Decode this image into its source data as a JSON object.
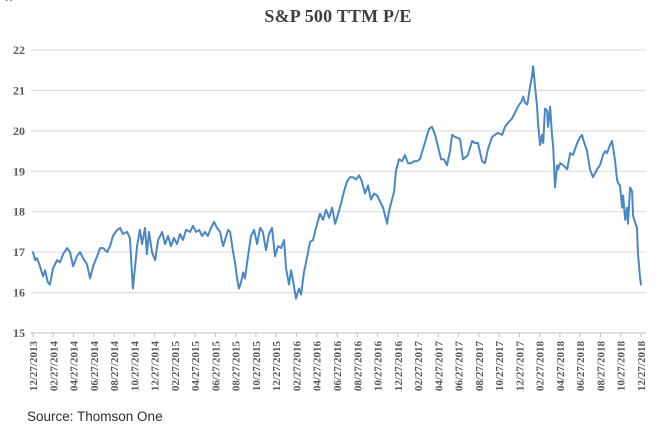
{
  "header": {
    "title": "S&P 500 TTM P/E",
    "artifact_glyph": "”"
  },
  "footer": {
    "source": "Source: Thomson One"
  },
  "chart_data": {
    "type": "line",
    "title": "S&P 500 TTM P/E",
    "x_unit": "weeks since 2013-12-27 (weekly data)",
    "xrange": [
      0,
      261
    ],
    "ylim": [
      15,
      22
    ],
    "yticks": [
      15,
      16,
      17,
      18,
      19,
      20,
      21,
      22
    ],
    "xtick_labels": [
      "12/27/2013",
      "02/27/2014",
      "04/27/2014",
      "06/27/2014",
      "08/27/2014",
      "10/27/2014",
      "12/27/2014",
      "02/27/2015",
      "04/27/2015",
      "06/27/2015",
      "08/27/2015",
      "10/27/2015",
      "12/27/2015",
      "02/27/2016",
      "04/27/2016",
      "06/27/2016",
      "08/27/2016",
      "10/27/2016",
      "12/27/2016",
      "02/27/2017",
      "04/27/2017",
      "06/27/2017",
      "08/27/2017",
      "10/27/2017",
      "12/27/2017",
      "02/27/2018",
      "04/27/2018",
      "06/27/2018",
      "08/27/2018",
      "10/27/2018",
      "12/27/2018"
    ],
    "grid": "horizontal",
    "legend": "none",
    "colors": {
      "line": "#4B86C5",
      "gridline": "#D9D9D9",
      "axis": "#BFBFBF",
      "tick_label": "#595959",
      "title": "#3F3F3F"
    },
    "series": [
      {
        "name": "S&P 500 TTM P/E",
        "color": "#4B86C5",
        "points": [
          [
            0,
            17.0
          ],
          [
            0.9,
            16.8
          ],
          [
            1.7,
            16.85
          ],
          [
            3,
            16.65
          ],
          [
            4.3,
            16.4
          ],
          [
            5.2,
            16.55
          ],
          [
            6.4,
            16.25
          ],
          [
            7.3,
            16.2
          ],
          [
            8.6,
            16.6
          ],
          [
            10.3,
            16.8
          ],
          [
            11.6,
            16.75
          ],
          [
            12.9,
            16.95
          ],
          [
            14.6,
            17.1
          ],
          [
            15.9,
            17.0
          ],
          [
            17.2,
            16.65
          ],
          [
            18.9,
            16.9
          ],
          [
            20.2,
            17.0
          ],
          [
            21.5,
            16.85
          ],
          [
            23.2,
            16.7
          ],
          [
            24.5,
            16.35
          ],
          [
            25.8,
            16.65
          ],
          [
            27.5,
            16.9
          ],
          [
            28.8,
            17.1
          ],
          [
            30.1,
            17.1
          ],
          [
            31.8,
            17.0
          ],
          [
            33.1,
            17.15
          ],
          [
            34.3,
            17.4
          ],
          [
            36.1,
            17.55
          ],
          [
            37.4,
            17.6
          ],
          [
            38.6,
            17.45
          ],
          [
            40.4,
            17.5
          ],
          [
            41.6,
            17.35
          ],
          [
            42.5,
            16.45
          ],
          [
            42.9,
            16.1
          ],
          [
            44.7,
            17.15
          ],
          [
            45.9,
            17.55
          ],
          [
            46.8,
            17.2
          ],
          [
            48.1,
            17.6
          ],
          [
            48.9,
            16.95
          ],
          [
            49.8,
            17.5
          ],
          [
            51.1,
            17.0
          ],
          [
            52.4,
            16.8
          ],
          [
            53.7,
            17.3
          ],
          [
            55.4,
            17.5
          ],
          [
            56.7,
            17.2
          ],
          [
            58,
            17.4
          ],
          [
            59.2,
            17.15
          ],
          [
            60.5,
            17.35
          ],
          [
            61.8,
            17.2
          ],
          [
            63.1,
            17.45
          ],
          [
            64.4,
            17.3
          ],
          [
            65.7,
            17.55
          ],
          [
            67.4,
            17.5
          ],
          [
            68.7,
            17.65
          ],
          [
            70,
            17.5
          ],
          [
            71.3,
            17.55
          ],
          [
            72.6,
            17.4
          ],
          [
            73.8,
            17.5
          ],
          [
            75.1,
            17.4
          ],
          [
            76.4,
            17.6
          ],
          [
            77.7,
            17.75
          ],
          [
            79,
            17.6
          ],
          [
            80.3,
            17.5
          ],
          [
            81.6,
            17.15
          ],
          [
            82.4,
            17.3
          ],
          [
            83.7,
            17.55
          ],
          [
            84.6,
            17.5
          ],
          [
            85.9,
            17.0
          ],
          [
            86.7,
            16.75
          ],
          [
            87.6,
            16.35
          ],
          [
            88.4,
            16.1
          ],
          [
            89.3,
            16.25
          ],
          [
            90.2,
            16.5
          ],
          [
            91,
            16.35
          ],
          [
            92.3,
            16.9
          ],
          [
            93.6,
            17.4
          ],
          [
            94.9,
            17.55
          ],
          [
            96.2,
            17.2
          ],
          [
            97.5,
            17.6
          ],
          [
            98.7,
            17.5
          ],
          [
            100,
            17.05
          ],
          [
            101.3,
            17.45
          ],
          [
            102.6,
            17.6
          ],
          [
            103.9,
            16.9
          ],
          [
            105.2,
            17.15
          ],
          [
            106.5,
            17.1
          ],
          [
            107.8,
            17.3
          ],
          [
            108.6,
            16.6
          ],
          [
            109.9,
            16.2
          ],
          [
            110.8,
            16.55
          ],
          [
            111.6,
            16.3
          ],
          [
            112.9,
            15.85
          ],
          [
            114.2,
            16.1
          ],
          [
            115.1,
            15.95
          ],
          [
            116.3,
            16.5
          ],
          [
            117.6,
            16.85
          ],
          [
            118.9,
            17.25
          ],
          [
            120.2,
            17.3
          ],
          [
            121.5,
            17.6
          ],
          [
            123.2,
            17.95
          ],
          [
            124.5,
            17.8
          ],
          [
            125.8,
            18.05
          ],
          [
            127.1,
            17.85
          ],
          [
            128.4,
            18.1
          ],
          [
            129.7,
            17.7
          ],
          [
            131,
            17.95
          ],
          [
            132.2,
            18.2
          ],
          [
            133.5,
            18.5
          ],
          [
            134.8,
            18.75
          ],
          [
            136.1,
            18.85
          ],
          [
            137.4,
            18.85
          ],
          [
            138.7,
            18.8
          ],
          [
            140,
            18.9
          ],
          [
            141.2,
            18.75
          ],
          [
            142.5,
            18.45
          ],
          [
            143.8,
            18.65
          ],
          [
            145.1,
            18.3
          ],
          [
            146.4,
            18.45
          ],
          [
            147.7,
            18.4
          ],
          [
            149,
            18.25
          ],
          [
            150.3,
            18.1
          ],
          [
            152,
            17.7
          ],
          [
            152.8,
            18.0
          ],
          [
            154.1,
            18.3
          ],
          [
            155,
            18.5
          ],
          [
            155.8,
            19.0
          ],
          [
            157.1,
            19.3
          ],
          [
            158.4,
            19.25
          ],
          [
            159.7,
            19.4
          ],
          [
            161,
            19.2
          ],
          [
            162.3,
            19.2
          ],
          [
            163.6,
            19.25
          ],
          [
            164.9,
            19.25
          ],
          [
            166.1,
            19.3
          ],
          [
            167.4,
            19.55
          ],
          [
            168.7,
            19.8
          ],
          [
            170,
            20.05
          ],
          [
            171.3,
            20.1
          ],
          [
            172.6,
            19.9
          ],
          [
            173.9,
            19.6
          ],
          [
            175.2,
            19.3
          ],
          [
            176.4,
            19.3
          ],
          [
            177.7,
            19.15
          ],
          [
            179,
            19.5
          ],
          [
            179.9,
            19.9
          ],
          [
            181.2,
            19.85
          ],
          [
            183.3,
            19.8
          ],
          [
            184.6,
            19.3
          ],
          [
            186.7,
            19.4
          ],
          [
            188.5,
            19.75
          ],
          [
            189.7,
            19.7
          ],
          [
            191,
            19.7
          ],
          [
            192.8,
            19.25
          ],
          [
            194,
            19.2
          ],
          [
            195.3,
            19.55
          ],
          [
            197.1,
            19.85
          ],
          [
            198.3,
            19.9
          ],
          [
            199.6,
            19.95
          ],
          [
            201.4,
            19.9
          ],
          [
            202.6,
            20.1
          ],
          [
            203.9,
            20.2
          ],
          [
            205.6,
            20.3
          ],
          [
            206.9,
            20.45
          ],
          [
            208.2,
            20.6
          ],
          [
            209.9,
            20.75
          ],
          [
            210.4,
            20.85
          ],
          [
            211.2,
            20.7
          ],
          [
            212.1,
            20.65
          ],
          [
            212.5,
            20.75
          ],
          [
            213.4,
            21.1
          ],
          [
            214.2,
            21.35
          ],
          [
            214.7,
            21.6
          ],
          [
            215.5,
            21.1
          ],
          [
            216.4,
            20.6
          ],
          [
            216.8,
            20.2
          ],
          [
            217.7,
            19.65
          ],
          [
            218.5,
            19.9
          ],
          [
            219,
            19.7
          ],
          [
            219.8,
            20.55
          ],
          [
            220.7,
            20.5
          ],
          [
            221.1,
            20.1
          ],
          [
            222,
            20.6
          ],
          [
            222.8,
            19.9
          ],
          [
            223.3,
            19.6
          ],
          [
            224.1,
            18.6
          ],
          [
            225,
            19.15
          ],
          [
            225.4,
            19.05
          ],
          [
            226.3,
            19.2
          ],
          [
            227.6,
            19.15
          ],
          [
            229.3,
            19.05
          ],
          [
            230.6,
            19.45
          ],
          [
            231.8,
            19.4
          ],
          [
            233.6,
            19.7
          ],
          [
            234.9,
            19.85
          ],
          [
            235.7,
            19.9
          ],
          [
            236.1,
            19.8
          ],
          [
            237.8,
            19.5
          ],
          [
            239.1,
            19.05
          ],
          [
            240.4,
            18.85
          ],
          [
            242.1,
            19.05
          ],
          [
            243.4,
            19.15
          ],
          [
            244.7,
            19.4
          ],
          [
            245.6,
            19.5
          ],
          [
            246.4,
            19.45
          ],
          [
            247.7,
            19.65
          ],
          [
            248.6,
            19.75
          ],
          [
            249,
            19.6
          ],
          [
            249.9,
            19.25
          ],
          [
            250.7,
            18.8
          ],
          [
            251.2,
            18.7
          ],
          [
            252,
            18.65
          ],
          [
            252.9,
            18.1
          ],
          [
            253.3,
            18.4
          ],
          [
            254.2,
            17.8
          ],
          [
            255,
            18.1
          ],
          [
            255.4,
            17.7
          ],
          [
            256.3,
            18.6
          ],
          [
            257.2,
            18.5
          ],
          [
            257.6,
            17.9
          ],
          [
            258.4,
            17.75
          ],
          [
            259.3,
            17.6
          ],
          [
            259.7,
            16.95
          ],
          [
            260.6,
            16.35
          ],
          [
            261,
            16.2
          ]
        ]
      }
    ]
  }
}
